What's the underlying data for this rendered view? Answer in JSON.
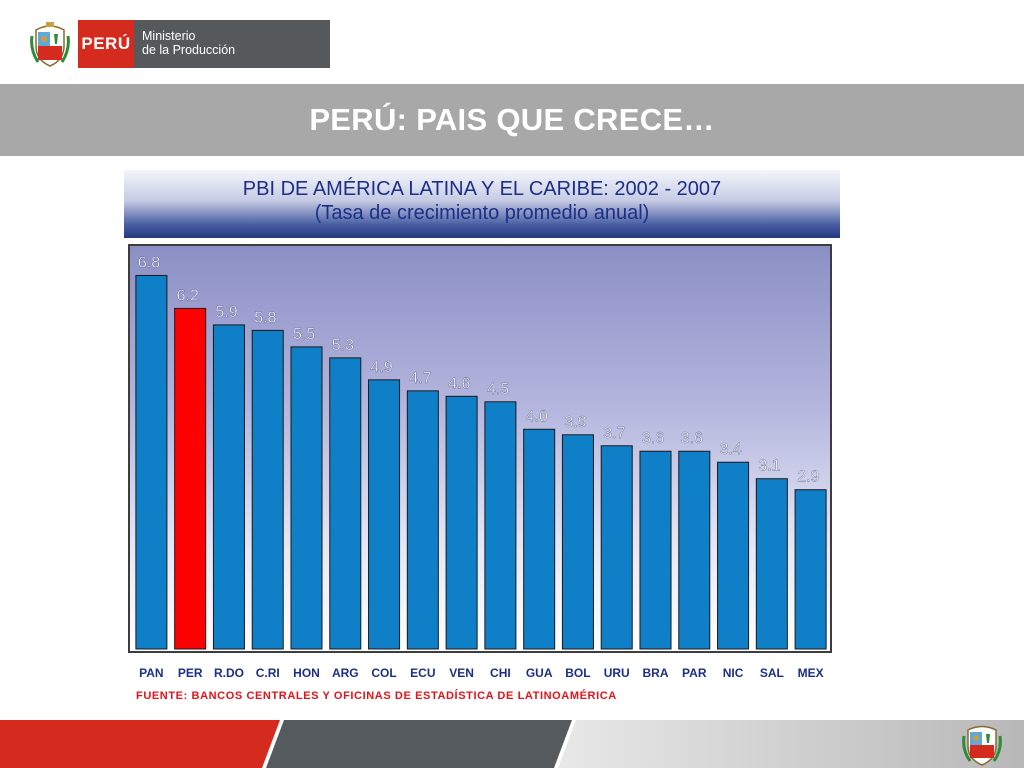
{
  "header": {
    "peru_label": "PERÚ",
    "ministry_line1": "Ministerio",
    "ministry_line2": "de la Producción"
  },
  "slide_title": "PERÚ: PAIS QUE CRECE…",
  "colors": {
    "bar": "#0f7fc8",
    "highlight_bar": "#ff0000",
    "title_text": "#1c2f86",
    "source_text": "#e0141a",
    "brand_red": "#d52b1e"
  },
  "chart_data": {
    "type": "bar",
    "title": "PBI DE AMÉRICA LATINA Y EL CARIBE: 2002 - 2007",
    "subtitle": "(Tasa de crecimiento promedio anual)",
    "xlabel": "",
    "ylabel": "",
    "ylim": [
      0,
      7.3
    ],
    "grid": false,
    "legend": "none",
    "highlight": "PER",
    "categories": [
      "PAN",
      "PER",
      "R.DO",
      "C.RI",
      "HON",
      "ARG",
      "COL",
      "ECU",
      "VEN",
      "CHI",
      "GUA",
      "BOL",
      "URU",
      "BRA",
      "PAR",
      "NIC",
      "SAL",
      "MEX"
    ],
    "values": [
      6.8,
      6.2,
      5.9,
      5.8,
      5.5,
      5.3,
      4.9,
      4.7,
      4.6,
      4.5,
      4.0,
      3.9,
      3.7,
      3.6,
      3.6,
      3.4,
      3.1,
      2.9
    ],
    "value_labels": [
      "6.8",
      "6.2",
      "5.9",
      "5.8",
      "5.5",
      "5.3",
      "4.9",
      "4.7",
      "4.6",
      "4.5",
      "4.0",
      "3.9",
      "3.7",
      "3.6",
      "3.6",
      "3.4",
      "3.1",
      "2.9"
    ],
    "source": "FUENTE: BANCOS CENTRALES Y OFICINAS DE ESTADÍSTICA DE LATINOAMÉRICA"
  }
}
